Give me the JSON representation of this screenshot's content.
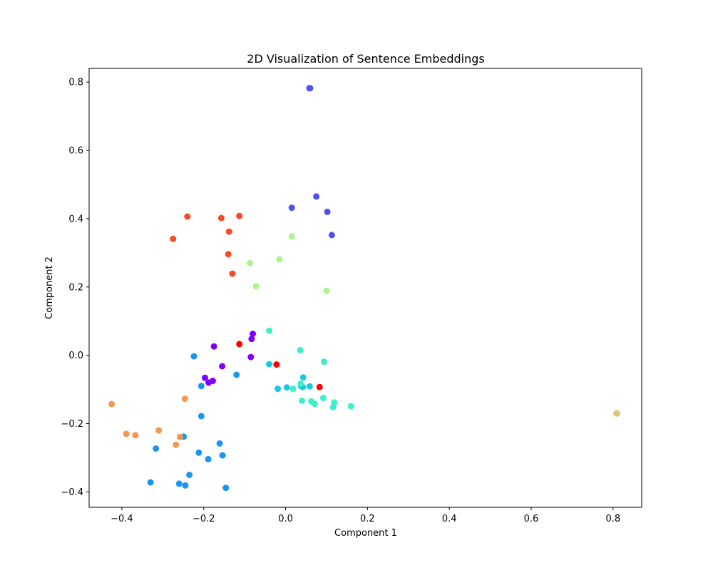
{
  "chart_data": {
    "type": "scatter",
    "title": "2D Visualization of Sentence Embeddings",
    "xlabel": "Component 1",
    "ylabel": "Component 2",
    "xlim": [
      -0.48,
      0.87
    ],
    "ylim": [
      -0.445,
      0.84
    ],
    "xticks": [
      -0.4,
      -0.2,
      0.0,
      0.2,
      0.4,
      0.6,
      0.8
    ],
    "xtick_labels": [
      "−0.4",
      "−0.2",
      "0.0",
      "0.2",
      "0.4",
      "0.6",
      "0.8"
    ],
    "yticks": [
      -0.4,
      -0.2,
      0.0,
      0.2,
      0.4,
      0.6,
      0.8
    ],
    "ytick_labels": [
      "−0.4",
      "−0.2",
      "0.0",
      "0.2",
      "0.4",
      "0.6",
      "0.8"
    ],
    "grid": false,
    "legend": "none",
    "groups": [
      {
        "color": "#8000ff",
        "points": [
          [
            -0.08,
            0.063
          ],
          [
            -0.083,
            0.048
          ],
          [
            -0.175,
            0.026
          ],
          [
            -0.085,
            -0.005
          ],
          [
            -0.155,
            -0.032
          ],
          [
            -0.197,
            -0.066
          ],
          [
            -0.188,
            -0.08
          ],
          [
            -0.178,
            -0.075
          ]
        ]
      },
      {
        "color": "#5050f0",
        "points": [
          [
            0.058,
            0.782
          ],
          [
            0.06,
            0.782
          ],
          [
            0.075,
            0.465
          ],
          [
            0.015,
            0.432
          ],
          [
            0.102,
            0.42
          ],
          [
            0.113,
            0.352
          ]
        ]
      },
      {
        "color": "#1996f0",
        "points": [
          [
            -0.224,
            -0.003
          ],
          [
            -0.12,
            -0.057
          ],
          [
            -0.206,
            -0.09
          ],
          [
            -0.206,
            -0.178
          ],
          [
            -0.249,
            -0.238
          ],
          [
            -0.317,
            -0.273
          ],
          [
            -0.161,
            -0.258
          ],
          [
            -0.212,
            -0.285
          ],
          [
            -0.154,
            -0.293
          ],
          [
            -0.189,
            -0.304
          ],
          [
            -0.235,
            -0.35
          ],
          [
            -0.33,
            -0.372
          ],
          [
            -0.26,
            -0.376
          ],
          [
            -0.245,
            -0.381
          ],
          [
            -0.146,
            -0.388
          ]
        ]
      },
      {
        "color": "#19c8e1",
        "points": [
          [
            -0.04,
            -0.026
          ],
          [
            0.043,
            -0.065
          ],
          [
            0.059,
            -0.091
          ],
          [
            0.042,
            -0.093
          ],
          [
            0.038,
            -0.09
          ],
          [
            0.003,
            -0.094
          ],
          [
            -0.019,
            -0.098
          ]
        ]
      },
      {
        "color": "#3cf0c8",
        "points": [
          [
            -0.04,
            0.072
          ],
          [
            0.036,
            0.015
          ],
          [
            0.094,
            -0.019
          ],
          [
            0.037,
            -0.083
          ],
          [
            0.018,
            -0.098
          ],
          [
            0.092,
            -0.125
          ],
          [
            0.04,
            -0.133
          ],
          [
            0.063,
            -0.135
          ],
          [
            0.071,
            -0.142
          ],
          [
            0.119,
            -0.138
          ],
          [
            0.116,
            -0.152
          ],
          [
            0.16,
            -0.149
          ]
        ]
      },
      {
        "color": "#aaf58c",
        "points": [
          [
            0.015,
            0.348
          ],
          [
            -0.015,
            0.281
          ],
          [
            -0.087,
            0.27
          ],
          [
            -0.072,
            0.202
          ],
          [
            0.1,
            0.189
          ]
        ]
      },
      {
        "color": "#e1c86e",
        "points": [
          [
            0.808,
            -0.17
          ],
          [
            0.81,
            -0.17
          ]
        ]
      },
      {
        "color": "#f59650",
        "points": [
          [
            -0.425,
            -0.143
          ],
          [
            -0.246,
            -0.127
          ],
          [
            -0.31,
            -0.22
          ],
          [
            -0.389,
            -0.23
          ],
          [
            -0.367,
            -0.234
          ],
          [
            -0.258,
            -0.239
          ],
          [
            -0.268,
            -0.262
          ]
        ]
      },
      {
        "color": "#f54b28",
        "points": [
          [
            -0.24,
            0.406
          ],
          [
            -0.157,
            0.402
          ],
          [
            -0.113,
            0.408
          ],
          [
            -0.138,
            0.362
          ],
          [
            -0.275,
            0.341
          ],
          [
            -0.14,
            0.296
          ],
          [
            -0.13,
            0.239
          ]
        ]
      },
      {
        "color": "#ff0000",
        "points": [
          [
            -0.113,
            0.033
          ],
          [
            -0.022,
            -0.027
          ],
          [
            0.083,
            -0.093
          ]
        ]
      }
    ]
  }
}
